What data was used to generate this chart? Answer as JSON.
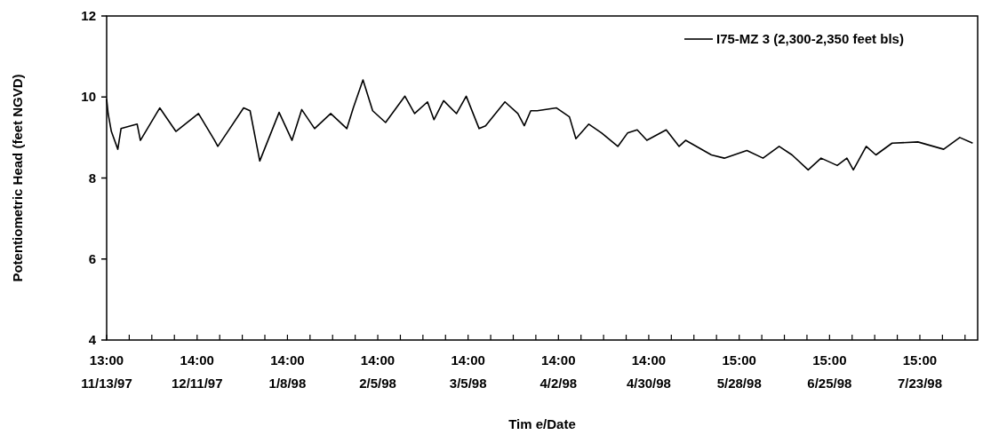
{
  "chart_data": {
    "type": "line",
    "xlabel": "Tim e/Date",
    "ylabel": "Potentiometric Head (feet NGVD)",
    "xlim": [
      "1997-11-13T13:00",
      "1998-08-10T13:00"
    ],
    "ylim": [
      4,
      12
    ],
    "yticks": [
      4,
      6,
      8,
      10,
      12
    ],
    "xticks": [
      {
        "value": "1997-11-13T13:00",
        "label": "13:00\n11/13/97"
      },
      {
        "value": "1997-11-20T13:00",
        "label": null
      },
      {
        "value": "1997-11-27T13:00",
        "label": null
      },
      {
        "value": "1997-12-04T13:00",
        "label": null
      },
      {
        "value": "1997-12-11T14:00",
        "label": "14:00\n12/11/97"
      },
      {
        "value": "1997-12-18T14:00",
        "label": null
      },
      {
        "value": "1997-12-25T14:00",
        "label": null
      },
      {
        "value": "1998-01-01T14:00",
        "label": null
      },
      {
        "value": "1998-01-08T14:00",
        "label": "14:00\n1/8/98"
      },
      {
        "value": "1998-01-15T14:00",
        "label": null
      },
      {
        "value": "1998-01-22T14:00",
        "label": null
      },
      {
        "value": "1998-01-29T14:00",
        "label": null
      },
      {
        "value": "1998-02-05T14:00",
        "label": "14:00\n2/5/98"
      },
      {
        "value": "1998-02-12T14:00",
        "label": null
      },
      {
        "value": "1998-02-19T14:00",
        "label": null
      },
      {
        "value": "1998-02-26T14:00",
        "label": null
      },
      {
        "value": "1998-03-05T14:00",
        "label": "14:00\n3/5/98"
      },
      {
        "value": "1998-03-12T14:00",
        "label": null
      },
      {
        "value": "1998-03-19T14:00",
        "label": null
      },
      {
        "value": "1998-03-26T14:00",
        "label": null
      },
      {
        "value": "1998-04-02T14:00",
        "label": "14:00\n4/2/98"
      },
      {
        "value": "1998-04-09T14:00",
        "label": null
      },
      {
        "value": "1998-04-16T14:00",
        "label": null
      },
      {
        "value": "1998-04-23T14:00",
        "label": null
      },
      {
        "value": "1998-04-30T14:00",
        "label": "14:00\n4/30/98"
      },
      {
        "value": "1998-05-07T14:00",
        "label": null
      },
      {
        "value": "1998-05-14T14:00",
        "label": null
      },
      {
        "value": "1998-05-21T14:00",
        "label": null
      },
      {
        "value": "1998-05-28T15:00",
        "label": "15:00\n5/28/98"
      },
      {
        "value": "1998-06-04T15:00",
        "label": null
      },
      {
        "value": "1998-06-11T15:00",
        "label": null
      },
      {
        "value": "1998-06-18T15:00",
        "label": null
      },
      {
        "value": "1998-06-25T15:00",
        "label": "15:00\n6/25/98"
      },
      {
        "value": "1998-07-02T15:00",
        "label": null
      },
      {
        "value": "1998-07-09T15:00",
        "label": null
      },
      {
        "value": "1998-07-16T15:00",
        "label": null
      },
      {
        "value": "1998-07-23T15:00",
        "label": "15:00\n7/23/98"
      },
      {
        "value": "1998-07-30T15:00",
        "label": null
      },
      {
        "value": "1998-08-06T15:00",
        "label": null
      }
    ],
    "x": [
      "1997-11-13T13:00",
      "1997-11-14",
      "1997-11-15",
      "1997-11-17",
      "1997-11-18",
      "1997-11-23",
      "1997-11-24",
      "1997-11-30",
      "1997-12-05",
      "1997-12-12",
      "1997-12-17",
      "1997-12-18",
      "1997-12-26",
      "1997-12-28",
      "1997-12-31",
      "1998-01-06",
      "1998-01-10",
      "1998-01-13",
      "1998-01-17",
      "1998-01-22",
      "1998-01-27",
      "1998-01-29",
      "1998-02-01",
      "1998-02-04",
      "1998-02-08",
      "1998-02-14",
      "1998-02-17",
      "1998-02-21",
      "1998-02-23",
      "1998-02-26",
      "1998-03-02",
      "1998-03-05",
      "1998-03-09",
      "1998-03-11",
      "1998-03-17",
      "1998-03-21",
      "1998-03-23",
      "1998-03-25",
      "1998-03-27",
      "1998-04-02",
      "1998-04-06",
      "1998-04-08",
      "1998-04-12",
      "1998-04-16",
      "1998-04-21",
      "1998-04-24",
      "1998-04-27",
      "1998-04-30",
      "1998-05-06",
      "1998-05-10",
      "1998-05-12",
      "1998-05-20",
      "1998-05-24",
      "1998-05-31",
      "1998-06-05",
      "1998-06-10",
      "1998-06-14",
      "1998-06-19",
      "1998-06-23",
      "1998-06-28",
      "1998-07-01",
      "1998-07-03",
      "1998-07-07",
      "1998-07-10",
      "1998-07-15",
      "1998-07-23",
      "1998-07-31",
      "1998-08-05",
      "1998-08-09"
    ],
    "series": [
      {
        "name": "I75-MZ 3 (2,300-2,350 feet bls)",
        "color": "#000000",
        "values": [
          9.95,
          9.59,
          9.15,
          8.71,
          9.22,
          9.33,
          8.93,
          9.73,
          9.15,
          9.59,
          8.93,
          8.78,
          9.73,
          9.66,
          8.42,
          9.62,
          8.93,
          9.69,
          9.22,
          9.59,
          9.22,
          9.73,
          10.42,
          9.66,
          9.37,
          10.02,
          9.59,
          9.88,
          9.44,
          9.91,
          9.59,
          10.02,
          9.22,
          9.29,
          9.88,
          9.59,
          9.29,
          9.66,
          9.66,
          9.73,
          9.51,
          8.97,
          9.33,
          9.11,
          8.78,
          9.11,
          9.19,
          8.93,
          9.19,
          8.78,
          8.93,
          8.57,
          8.49,
          8.68,
          8.49,
          8.78,
          8.57,
          8.2,
          8.49,
          8.31,
          8.49,
          8.2,
          8.78,
          8.57,
          8.86,
          8.89,
          8.71,
          9.0,
          8.86
        ]
      }
    ],
    "legend": "top right",
    "grid": false
  }
}
